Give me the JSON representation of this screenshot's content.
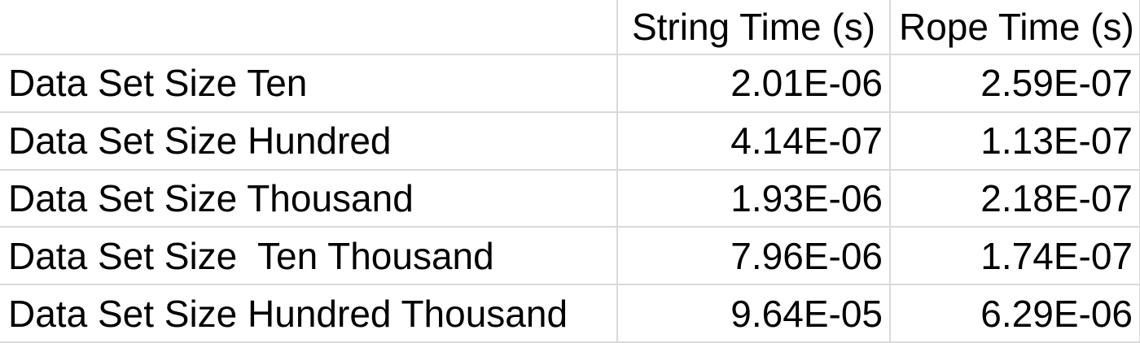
{
  "chart_data": {
    "type": "table",
    "columns": [
      "",
      "String Time (s)",
      "Rope Time (s)"
    ],
    "rows": [
      {
        "label": "Data Set Size Ten",
        "string_time": "2.01E-06",
        "rope_time": "2.59E-07"
      },
      {
        "label": "Data Set Size Hundred",
        "string_time": "4.14E-07",
        "rope_time": "1.13E-07"
      },
      {
        "label": "Data Set Size Thousand",
        "string_time": "1.93E-06",
        "rope_time": "2.18E-07"
      },
      {
        "label": "Data Set Size  Ten Thousand",
        "string_time": "7.96E-06",
        "rope_time": "1.74E-07"
      },
      {
        "label": "Data Set Size Hundred Thousand",
        "string_time": "9.64E-05",
        "rope_time": "6.29E-06"
      }
    ],
    "series": [
      {
        "name": "String Time (s)",
        "values": [
          2.01e-06,
          4.14e-07,
          1.93e-06,
          7.96e-06,
          9.64e-05
        ]
      },
      {
        "name": "Rope Time (s)",
        "values": [
          2.59e-07,
          1.13e-07,
          2.18e-07,
          1.74e-07,
          6.29e-06
        ]
      }
    ],
    "grid": true
  },
  "colors": {
    "gridline": "#d9d9d9",
    "text": "#000000",
    "background": "#ffffff"
  }
}
